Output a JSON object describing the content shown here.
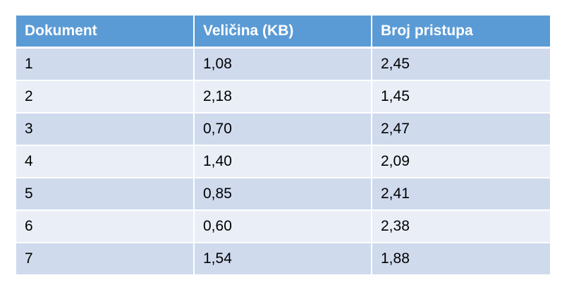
{
  "table": {
    "headers": [
      "Dokument",
      "Veličina (KB)",
      "Broj pristupa"
    ],
    "rows": [
      [
        "1",
        "1,08",
        "2,45"
      ],
      [
        "2",
        "2,18",
        "1,45"
      ],
      [
        "3",
        "0,70",
        "2,47"
      ],
      [
        "4",
        "1,40",
        "2,09"
      ],
      [
        "5",
        "0,85",
        "2,41"
      ],
      [
        "6",
        "0,60",
        "2,38"
      ],
      [
        "7",
        "1,54",
        "1,88"
      ]
    ]
  },
  "colors": {
    "header_bg": "#5b9bd5",
    "row_odd_bg": "#cfdaed",
    "row_even_bg": "#e9eef7"
  }
}
